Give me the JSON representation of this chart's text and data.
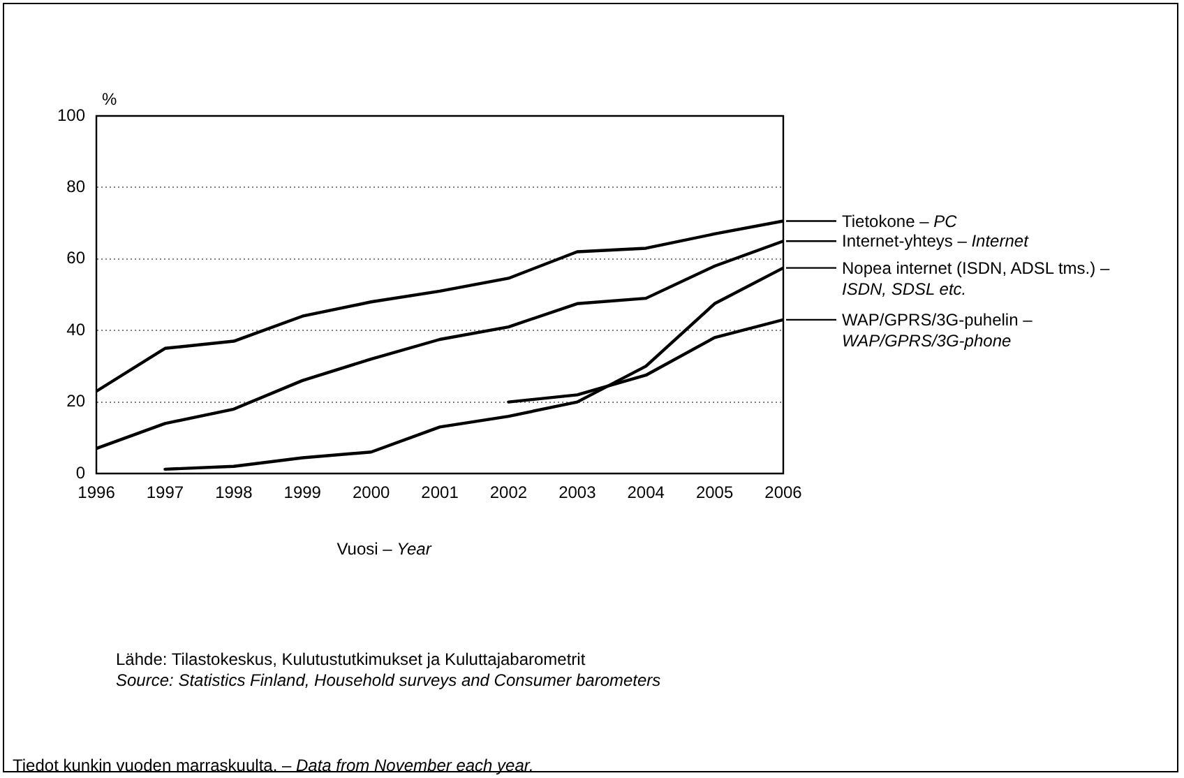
{
  "chart_data": {
    "type": "line",
    "ylabel": "%",
    "xlabel": "Vuosi – Year",
    "x": [
      1996,
      1997,
      1998,
      1999,
      2000,
      2001,
      2002,
      2003,
      2004,
      2005,
      2006
    ],
    "xlim": [
      1996,
      2006
    ],
    "xticks": [
      1996,
      1997,
      1998,
      1999,
      2000,
      2001,
      2002,
      2003,
      2004,
      2005,
      2006
    ],
    "ylim": [
      0,
      100
    ],
    "yticks": [
      0,
      20,
      40,
      60,
      80,
      100
    ],
    "grid": "y",
    "legend": "right",
    "marker": "none",
    "line_style": "solid",
    "series": [
      {
        "name": "Tietokone – PC",
        "color": "#000000",
        "values": [
          23,
          35,
          37,
          44,
          48,
          51,
          54.6,
          62,
          63,
          67,
          70.6
        ]
      },
      {
        "name": "Internet-yhteys – Internet",
        "color": "#000000",
        "values": [
          7,
          14,
          18,
          26,
          32,
          37.5,
          41,
          47.5,
          49,
          58,
          65
        ]
      },
      {
        "name": "Nopea internet (ISDN, ADSL tms.) – ISDN, SDSL etc.",
        "color": "#000000",
        "values": [
          null,
          1.2,
          2,
          4.4,
          6,
          13,
          16,
          20,
          30,
          47.5,
          57.5
        ]
      },
      {
        "name": "WAP/GPRS/3G-puhelin – WAP/GPRS/3G-phone",
        "color": "#000000",
        "values": [
          null,
          null,
          null,
          null,
          null,
          null,
          20,
          22,
          27.5,
          38,
          43
        ]
      }
    ],
    "annotations": [
      "Lähde: Tilastokeskus, Kulutustutkimukset ja Kuluttajabarometrit",
      "Source: Statistics Finland, Household surveys and Consumer barometers",
      "Tiedot kunkin vuoden marraskuulta. – Data from November each year."
    ]
  }
}
